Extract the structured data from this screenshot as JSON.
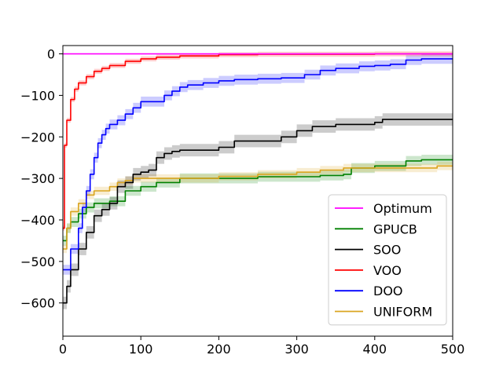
{
  "chart_data": {
    "type": "line",
    "title": "",
    "xlabel": "",
    "ylabel": "",
    "xlim": [
      0,
      500
    ],
    "ylim": [
      -680,
      20
    ],
    "xticks": [
      0,
      100,
      200,
      300,
      400,
      500
    ],
    "yticks": [
      0,
      -100,
      -200,
      -300,
      -400,
      -500,
      -600
    ],
    "grid": false,
    "legend_position": "lower-right",
    "series": [
      {
        "name": "Optimum",
        "color": "#ff00ff",
        "x": [
          0,
          500
        ],
        "y": [
          0,
          0
        ],
        "band": 0
      },
      {
        "name": "GPUCB",
        "color": "#008000",
        "x": [
          0,
          5,
          10,
          20,
          30,
          40,
          60,
          80,
          100,
          120,
          150,
          200,
          250,
          300,
          330,
          360,
          370,
          380,
          400,
          420,
          440,
          460,
          480,
          500
        ],
        "y": [
          -450,
          -420,
          -405,
          -385,
          -370,
          -360,
          -355,
          -330,
          -320,
          -310,
          -300,
          -300,
          -296,
          -296,
          -293,
          -290,
          -275,
          -275,
          -270,
          -270,
          -258,
          -255,
          -255,
          -255
        ],
        "band": 12
      },
      {
        "name": "SOO",
        "color": "#000000",
        "x": [
          0,
          5,
          10,
          20,
          30,
          40,
          50,
          60,
          70,
          80,
          90,
          100,
          110,
          120,
          130,
          140,
          150,
          200,
          220,
          250,
          280,
          300,
          320,
          350,
          380,
          400,
          410,
          420,
          450,
          500
        ],
        "y": [
          -600,
          -560,
          -520,
          -470,
          -430,
          -390,
          -375,
          -360,
          -320,
          -310,
          -290,
          -285,
          -280,
          -250,
          -240,
          -235,
          -232,
          -225,
          -210,
          -210,
          -200,
          -185,
          -175,
          -170,
          -170,
          -165,
          -158,
          -158,
          -158,
          -158
        ],
        "band": 15
      },
      {
        "name": "VOO",
        "color": "#ff0000",
        "x": [
          0,
          2,
          5,
          10,
          15,
          20,
          30,
          40,
          50,
          60,
          80,
          100,
          120,
          150,
          200,
          250,
          300,
          400,
          500
        ],
        "y": [
          -420,
          -220,
          -160,
          -110,
          -85,
          -70,
          -55,
          -42,
          -35,
          -28,
          -18,
          -12,
          -8,
          -5,
          -2,
          -1,
          -1,
          0,
          0
        ],
        "band": 6
      },
      {
        "name": "DOO",
        "color": "#0000ff",
        "x": [
          0,
          10,
          20,
          25,
          30,
          35,
          40,
          45,
          50,
          55,
          60,
          70,
          80,
          90,
          100,
          110,
          120,
          130,
          140,
          150,
          160,
          180,
          200,
          220,
          250,
          280,
          300,
          310,
          330,
          350,
          370,
          380,
          400,
          420,
          440,
          460,
          480,
          500
        ],
        "y": [
          -520,
          -470,
          -420,
          -370,
          -330,
          -290,
          -250,
          -215,
          -195,
          -180,
          -170,
          -160,
          -145,
          -130,
          -115,
          -115,
          -115,
          -100,
          -90,
          -80,
          -75,
          -70,
          -65,
          -62,
          -60,
          -58,
          -58,
          -50,
          -40,
          -35,
          -35,
          -30,
          -28,
          -25,
          -15,
          -12,
          -12,
          -12
        ],
        "band": 12
      },
      {
        "name": "UNIFORM",
        "color": "#daa520",
        "x": [
          0,
          5,
          10,
          20,
          30,
          40,
          50,
          60,
          70,
          80,
          90,
          100,
          150,
          200,
          250,
          300,
          330,
          350,
          360,
          370,
          400,
          450,
          480,
          500
        ],
        "y": [
          -470,
          -420,
          -380,
          -360,
          -340,
          -330,
          -330,
          -320,
          -310,
          -305,
          -300,
          -300,
          -300,
          -295,
          -290,
          -285,
          -280,
          -280,
          -275,
          -275,
          -275,
          -275,
          -270,
          -270
        ],
        "band": 10
      }
    ]
  }
}
